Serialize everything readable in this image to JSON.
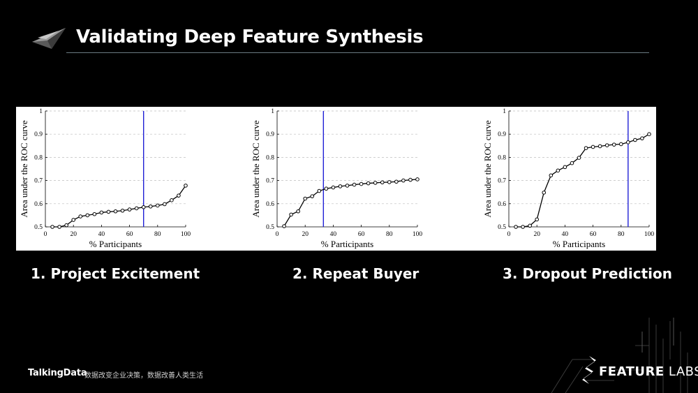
{
  "header": {
    "title": "Validating Deep Feature Synthesis"
  },
  "captions": [
    "1. Project Excitement",
    "2. Repeat Buyer",
    "3. Dropout Prediction"
  ],
  "footer": {
    "brand": "TalkingData",
    "slogan": "数据改变企业决策，数据改善人类生活",
    "logo_text_bold": "FEATURE",
    "logo_text_light": "LABS"
  },
  "colors": {
    "background": "#000000",
    "line": "#000000",
    "vline": "#1f1fd6",
    "grid": "#bdbdbd"
  },
  "chart_data": [
    {
      "type": "line",
      "xlabel": "% Participants",
      "ylabel": "Area under the ROC curve",
      "xlim": [
        0,
        100
      ],
      "ylim": [
        0.5,
        1
      ],
      "xticks": [
        0,
        20,
        40,
        60,
        80,
        100
      ],
      "yticks": [
        0.5,
        0.6,
        0.7,
        0.8,
        0.9,
        1
      ],
      "ytick_labels": [
        "0.5",
        "0.6",
        "0.7",
        "0.8",
        "0.9",
        "1"
      ],
      "grid": true,
      "vline_x": 70,
      "x": [
        5,
        10,
        15,
        20,
        25,
        30,
        35,
        40,
        45,
        50,
        55,
        60,
        65,
        70,
        75,
        80,
        85,
        90,
        95,
        100
      ],
      "y": [
        0.5,
        0.5,
        0.507,
        0.53,
        0.545,
        0.55,
        0.555,
        0.562,
        0.565,
        0.567,
        0.57,
        0.575,
        0.58,
        0.585,
        0.588,
        0.592,
        0.598,
        0.615,
        0.635,
        0.678
      ]
    },
    {
      "type": "line",
      "xlabel": "% Participants",
      "ylabel": "Area under the ROC curve",
      "xlim": [
        0,
        100
      ],
      "ylim": [
        0.5,
        1
      ],
      "xticks": [
        0,
        20,
        40,
        60,
        80,
        100
      ],
      "yticks": [
        0.5,
        0.6,
        0.7,
        0.8,
        0.9,
        1
      ],
      "ytick_labels": [
        "0.5",
        "0.6",
        "0.7",
        "0.8",
        "0.9",
        "1"
      ],
      "grid": true,
      "vline_x": 33,
      "x": [
        5,
        10,
        15,
        20,
        25,
        30,
        35,
        40,
        45,
        50,
        55,
        60,
        65,
        70,
        75,
        80,
        85,
        90,
        95,
        100
      ],
      "y": [
        0.503,
        0.553,
        0.567,
        0.622,
        0.632,
        0.655,
        0.665,
        0.67,
        0.675,
        0.678,
        0.682,
        0.685,
        0.688,
        0.69,
        0.692,
        0.693,
        0.695,
        0.7,
        0.703,
        0.705
      ]
    },
    {
      "type": "line",
      "xlabel": "% Participants",
      "ylabel": "Area under the ROC curve",
      "xlim": [
        0,
        100
      ],
      "ylim": [
        0.5,
        1
      ],
      "xticks": [
        0,
        20,
        40,
        60,
        80,
        100
      ],
      "yticks": [
        0.5,
        0.6,
        0.7,
        0.8,
        0.9,
        1
      ],
      "ytick_labels": [
        "0.5",
        "0.6",
        "0.7",
        "0.8",
        "0.9",
        "1"
      ],
      "grid": true,
      "vline_x": 85,
      "x": [
        5,
        10,
        15,
        20,
        25,
        30,
        35,
        40,
        45,
        50,
        55,
        60,
        65,
        70,
        75,
        80,
        85,
        90,
        95,
        100
      ],
      "y": [
        0.5,
        0.5,
        0.505,
        0.532,
        0.648,
        0.722,
        0.743,
        0.758,
        0.775,
        0.798,
        0.84,
        0.845,
        0.848,
        0.852,
        0.855,
        0.857,
        0.865,
        0.875,
        0.882,
        0.9
      ]
    }
  ]
}
